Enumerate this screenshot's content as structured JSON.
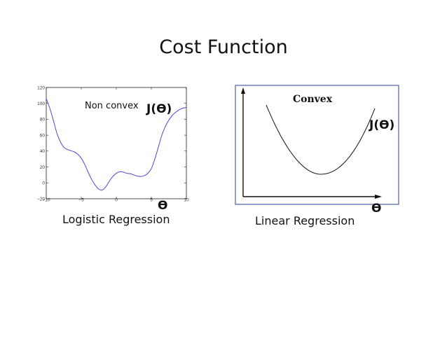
{
  "slide": {
    "title": "Cost Function"
  },
  "chart_data": [
    {
      "type": "line",
      "annotation": "Non convex",
      "y_label": "J(ϴ)",
      "x_label": "ϴ",
      "caption": "Logistic Regression",
      "xlim": [
        -10,
        10
      ],
      "ylim": [
        -20,
        120
      ],
      "x_ticks": [
        -10,
        -5,
        0,
        5,
        10
      ],
      "y_ticks": [
        -20,
        0,
        20,
        40,
        60,
        80,
        100,
        120
      ],
      "tick_labels": {
        "x": [
          "−10",
          "−5",
          "0",
          "5",
          "10"
        ],
        "y": [
          "−20",
          "0",
          "20",
          "40",
          "60",
          "80",
          "100",
          "120"
        ]
      },
      "grid": false,
      "line_color": "#4a4ad0",
      "series": [
        {
          "x": [
            -10,
            -9.5,
            -9,
            -8.5,
            -8,
            -7.5,
            -7,
            -6.5,
            -6,
            -5.5,
            -5,
            -4.5,
            -4,
            -3.5,
            -3,
            -2.5,
            -2,
            -1.5,
            -1,
            -0.5,
            0,
            0.5,
            1,
            1.5,
            2,
            2.5,
            3,
            3.5,
            4,
            4.5,
            5,
            5.5,
            6,
            6.5,
            7,
            7.5,
            8,
            8.5,
            9,
            9.5,
            10
          ],
          "y": [
            106,
            94,
            79,
            63,
            52,
            45,
            42,
            40.5,
            39,
            36,
            31,
            23,
            13,
            4,
            -3,
            -8,
            -9,
            -5,
            2,
            8,
            12,
            14,
            13.5,
            12,
            11.5,
            10,
            8.5,
            8,
            9,
            12,
            18,
            30,
            45,
            60,
            71,
            79,
            85,
            89,
            92,
            94,
            95
          ]
        }
      ]
    },
    {
      "type": "line",
      "title": "Convex",
      "y_label": "J(ϴ)",
      "x_label": "ϴ",
      "caption": "Linear Regression",
      "frame_color": "#4a5fa8",
      "series": [
        {
          "x": [
            -1,
            -0.8,
            -0.6,
            -0.4,
            -0.2,
            0,
            0.2,
            0.4,
            0.6,
            0.8,
            1
          ],
          "y": [
            1,
            0.64,
            0.36,
            0.16,
            0.04,
            0,
            0.04,
            0.16,
            0.36,
            0.64,
            1
          ]
        }
      ]
    }
  ]
}
